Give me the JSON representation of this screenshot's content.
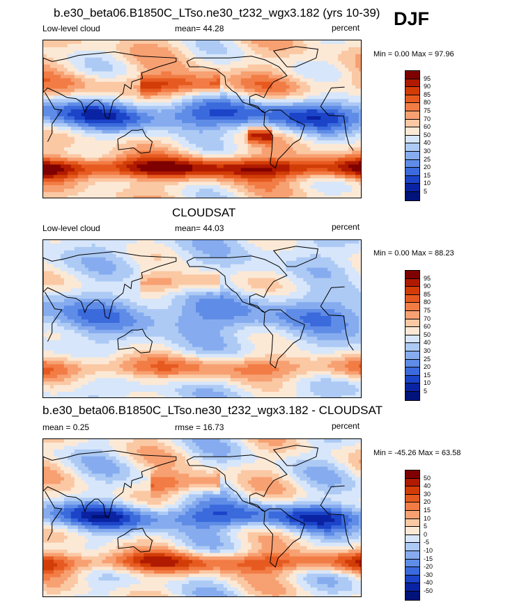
{
  "season": "DJF",
  "panels": [
    {
      "title": "b.e30_beta06.B1850C_LTso.ne30_t232_wgx3.182 (yrs 10-39)",
      "left_label": "Low-level cloud",
      "center_label": "mean=  44.28",
      "right_label": "percent",
      "minmax": "Min =   0.00 Max =  97.96",
      "colorbar_labels": [
        "95",
        "90",
        "85",
        "80",
        "75",
        "70",
        "60",
        "50",
        "40",
        "30",
        "25",
        "20",
        "15",
        "10",
        "5"
      ],
      "kind": "model"
    },
    {
      "title": "CLOUDSAT",
      "left_label": "Low-level cloud",
      "center_label": "mean=  44.03",
      "right_label": "percent",
      "minmax": "Min =   0.00 Max =  88.23",
      "colorbar_labels": [
        "95",
        "90",
        "85",
        "80",
        "75",
        "70",
        "60",
        "50",
        "40",
        "30",
        "25",
        "20",
        "15",
        "10",
        "5"
      ],
      "kind": "obs"
    },
    {
      "title": "b.e30_beta06.B1850C_LTso.ne30_t232_wgx3.182 - CLOUDSAT",
      "left_label": "mean =   0.25",
      "center_label": "rmse =  16.73",
      "right_label": "percent",
      "minmax": "Min = -45.26 Max =  63.58",
      "colorbar_labels": [
        "50",
        "40",
        "30",
        "20",
        "15",
        "10",
        "5",
        "0",
        "-5",
        "-10",
        "-15",
        "-20",
        "-30",
        "-40",
        "-50"
      ],
      "kind": "diff"
    }
  ],
  "colors": {
    "colorbar": [
      "#7f0000",
      "#b01a00",
      "#d23c06",
      "#e65a20",
      "#f27c45",
      "#f7a072",
      "#fbc8a4",
      "#fbe9d6",
      "#d7e6fa",
      "#adcaf5",
      "#86acef",
      "#5f8ce6",
      "#3b6adc",
      "#1c44c8",
      "#0a23a3",
      "#00137a"
    ],
    "land": "#ffffff"
  },
  "chart_data": {
    "type": "heatmap",
    "title": "DJF",
    "projection": "cylindrical equidistant, centered on Pacific",
    "variable": "Low-level cloud",
    "units": "percent",
    "panels": [
      {
        "name": "b.e30_beta06.B1850C_LTso.ne30_t232_wgx3.182 (yrs 10-39)",
        "mean": 44.28,
        "min": 0.0,
        "max": 97.96,
        "levels": [
          5,
          10,
          15,
          20,
          25,
          30,
          40,
          50,
          60,
          70,
          75,
          80,
          85,
          90,
          95
        ]
      },
      {
        "name": "CLOUDSAT",
        "mean": 44.03,
        "min": 0.0,
        "max": 88.23,
        "levels": [
          5,
          10,
          15,
          20,
          25,
          30,
          40,
          50,
          60,
          70,
          75,
          80,
          85,
          90,
          95
        ]
      },
      {
        "name": "b.e30_beta06.B1850C_LTso.ne30_t232_wgx3.182 - CLOUDSAT",
        "mean": 0.25,
        "rmse": 16.73,
        "min": -45.26,
        "max": 63.58,
        "levels": [
          -50,
          -40,
          -30,
          -20,
          -15,
          -10,
          -5,
          0,
          5,
          10,
          15,
          20,
          30,
          40,
          50
        ]
      }
    ]
  }
}
